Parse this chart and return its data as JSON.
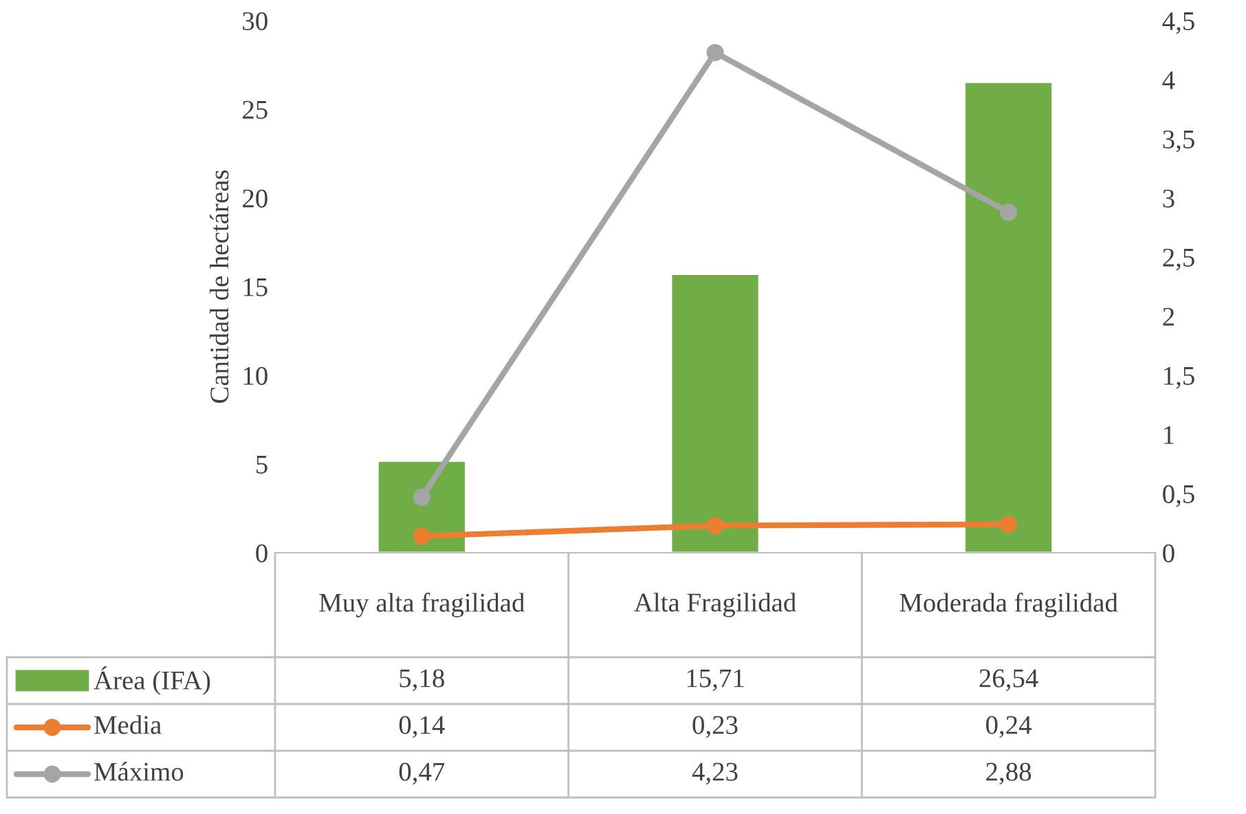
{
  "chart_data": {
    "type": "bar",
    "ylabel": "Cantidad de hectáreas",
    "categories": [
      "Muy alta fragilidad",
      "Alta Fragilidad",
      "Moderada fragilidad"
    ],
    "series": [
      {
        "name": "Área (IFA)",
        "color": "#70ad47",
        "values": [
          5.18,
          15.71,
          26.54
        ],
        "value_labels": [
          "5,18",
          "15,71",
          "26,54"
        ]
      },
      {
        "name": "Media",
        "type": "line",
        "axis": "y2",
        "color": "#ed7d31",
        "marker": "circle",
        "line_style": "solid",
        "values": [
          0.14,
          0.23,
          0.24
        ],
        "value_labels": [
          "0,14",
          "0,23",
          "0,24"
        ]
      },
      {
        "name": "Máximo",
        "type": "line",
        "axis": "y2",
        "color": "#a5a5a5",
        "marker": "circle",
        "line_style": "solid",
        "values": [
          0.47,
          4.23,
          2.88
        ],
        "value_labels": [
          "0,47",
          "4,23",
          "2,88"
        ]
      }
    ],
    "ylim": [
      0,
      30
    ],
    "yticks": [
      0,
      5,
      10,
      15,
      20,
      25,
      30
    ],
    "y2lim": [
      0,
      4.5
    ],
    "y2ticks": [
      0,
      {
        "value": 0.5,
        "label": "0,5"
      },
      1,
      {
        "value": 1.5,
        "label": "1,5"
      },
      2,
      {
        "value": 2.5,
        "label": "2,5"
      },
      3,
      {
        "value": 3.5,
        "label": "3,5"
      },
      4,
      {
        "value": 4.5,
        "label": "4,5"
      }
    ],
    "grid": false,
    "legend": "bottom"
  }
}
